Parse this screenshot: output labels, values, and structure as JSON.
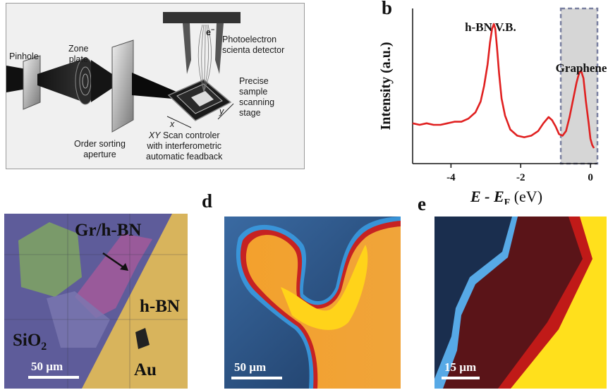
{
  "panel_a": {
    "labels": {
      "pinhole": "Pinhole",
      "zone_plate": "Zone\nplate",
      "electron": "e",
      "electron_sup": "−",
      "detector": "Photoelectron\nscienta detector",
      "stage": "Precise\nsample\nscanning\nstage",
      "axis_x": "x",
      "axis_y": "y",
      "osa": "Order sorting\naperture",
      "scan_ctrl_italic": "XY",
      "scan_ctrl": " Scan controler\nwith interferometric\nautomatic feadback"
    }
  },
  "panel_b": {
    "letter": "b",
    "chart_data": {
      "type": "line",
      "title": "",
      "xlabel_italic": "E - E",
      "xlabel_sub": "F",
      "xlabel_unit": " (eV)",
      "ylabel": "Intensity (a.u.)",
      "xlim": [
        -5.1,
        0.2
      ],
      "ylim": [
        0,
        1
      ],
      "xticks": [
        -4,
        -2,
        0
      ],
      "xtick_labels": [
        "-4",
        "-2",
        "0"
      ],
      "annotations": [
        "h-BN V.B.",
        "Graphene π"
      ],
      "highlight_region": [
        -0.85,
        0.2
      ],
      "line_color": "#e02020",
      "series": [
        {
          "x": [
            -5.1,
            -4.9,
            -4.7,
            -4.5,
            -4.3,
            -4.1,
            -3.9,
            -3.7,
            -3.5,
            -3.3,
            -3.15,
            -3.05,
            -2.95,
            -2.88,
            -2.82,
            -2.77,
            -2.73,
            -2.68,
            -2.62,
            -2.55,
            -2.45,
            -2.3,
            -2.1,
            -1.9,
            -1.7,
            -1.5,
            -1.35,
            -1.2,
            -1.1,
            -1.0,
            -0.9,
            -0.8,
            -0.7,
            -0.6,
            -0.5,
            -0.4,
            -0.33,
            -0.27,
            -0.2,
            -0.13,
            -0.05,
            0.0,
            0.05,
            0.1
          ],
          "y": [
            0.26,
            0.25,
            0.26,
            0.25,
            0.25,
            0.26,
            0.27,
            0.27,
            0.29,
            0.33,
            0.4,
            0.5,
            0.64,
            0.78,
            0.87,
            0.9,
            0.87,
            0.75,
            0.58,
            0.42,
            0.31,
            0.22,
            0.18,
            0.17,
            0.18,
            0.21,
            0.26,
            0.3,
            0.28,
            0.24,
            0.19,
            0.18,
            0.21,
            0.3,
            0.41,
            0.52,
            0.58,
            0.6,
            0.55,
            0.4,
            0.26,
            0.16,
            0.12,
            0.1
          ]
        }
      ]
    }
  },
  "panel_c": {
    "labels": {
      "gr_hbn": "Gr/h-BN",
      "hbn": "h-BN",
      "sio2": "SiO",
      "sio2_sub": "2",
      "au": "Au",
      "scale": "50 µm"
    }
  },
  "panel_d": {
    "letter": "d",
    "scale": "50 µm"
  },
  "panel_e": {
    "letter": "e",
    "scale": "15 µm"
  }
}
